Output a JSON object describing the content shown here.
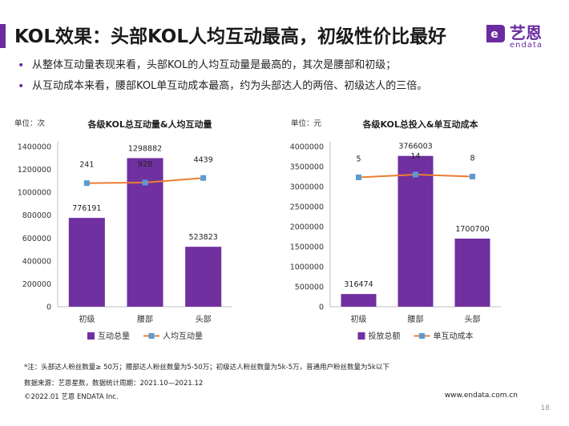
{
  "title": "KOL效果：头部KOL人均互动最高，初级性价比最好",
  "logo": {
    "cn": "艺恩",
    "en": "endata",
    "color": "#6a2ca0"
  },
  "bullets": [
    "从整体互动量表现来看，头部KOL的人均互动量是最高的，其次是腰部和初级；",
    "从互动成本来看，腰部KOL单互动成本最高，约为头部达人的两倍、初级达人的三倍。"
  ],
  "colors": {
    "bar": "#7030a0",
    "line": "#ed7d31",
    "marker": "#5b9bd5"
  },
  "chart_data": [
    {
      "type": "bar",
      "title": "各级KOL总互动量&人均互动量",
      "unit_label": "单位：次",
      "categories": [
        "初级",
        "腰部",
        "头部"
      ],
      "series": [
        {
          "name": "互动总量",
          "kind": "bar",
          "values": [
            776191,
            1298882,
            523823
          ],
          "labels": [
            "776191",
            "1298882",
            "523823"
          ]
        },
        {
          "name": "人均互动量",
          "kind": "line",
          "values": [
            241,
            928,
            4439
          ],
          "labels": [
            "241",
            "928",
            "4439"
          ]
        }
      ],
      "ylim": [
        0,
        1400000
      ],
      "yticks": [
        0,
        200000,
        400000,
        600000,
        800000,
        1000000,
        1200000,
        1400000
      ],
      "line_positions": [
        1080000,
        1085000,
        1125000
      ],
      "legend_position": "bottom"
    },
    {
      "type": "bar",
      "title": "各级KOL总投入&单互动成本",
      "unit_label": "单位：元",
      "categories": [
        "初级",
        "腰部",
        "头部"
      ],
      "series": [
        {
          "name": "投放总额",
          "kind": "bar",
          "values": [
            316474,
            3766003,
            1700700
          ],
          "labels": [
            "316474",
            "3766003",
            "1700700"
          ]
        },
        {
          "name": "单互动成本",
          "kind": "line",
          "values": [
            5,
            14,
            8
          ],
          "labels": [
            "5",
            "14",
            "8"
          ]
        }
      ],
      "ylim": [
        0,
        4000000
      ],
      "yticks": [
        0,
        500000,
        1000000,
        1500000,
        2000000,
        2500000,
        3000000,
        3500000,
        4000000
      ],
      "line_positions": [
        3230000,
        3300000,
        3250000
      ],
      "legend_position": "bottom"
    }
  ],
  "footer": {
    "note": "*注：头部达人粉丝数量≥ 50万；腰部达人粉丝数量为5-50万；初级达人粉丝数量为5k-5万，普通用户粉丝数量为5k以下",
    "source": "数据来源：艺恩星数，数据统计周期：2021.10—2021.12",
    "copyright": "©2022.01 艺恩 ENDATA Inc.",
    "url": "www.endata.com.cn",
    "page": "18"
  }
}
